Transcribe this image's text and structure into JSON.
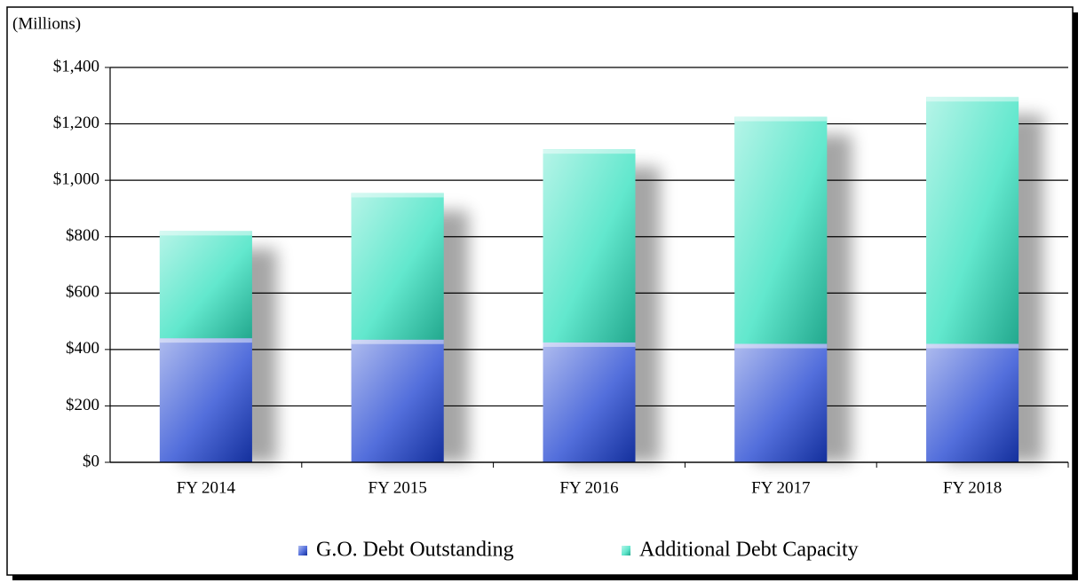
{
  "chart_data": {
    "type": "stacked_bar",
    "y_axis_label": "(Millions)",
    "categories": [
      "FY 2014",
      "FY 2015",
      "FY 2016",
      "FY 2017",
      "FY 2018"
    ],
    "series": [
      {
        "name": "G.O. Debt Outstanding",
        "color": "#1a3fd0",
        "values": [
          440,
          435,
          425,
          420,
          420
        ]
      },
      {
        "name": "Additional Debt Capacity",
        "color": "#2ee0bd",
        "values": [
          380,
          520,
          685,
          805,
          875
        ]
      }
    ],
    "ylim": [
      0,
      1400
    ],
    "yticks": [
      {
        "value": 0,
        "label": "$0"
      },
      {
        "value": 200,
        "label": "$200"
      },
      {
        "value": 400,
        "label": "$400"
      },
      {
        "value": 600,
        "label": "$600"
      },
      {
        "value": 800,
        "label": "$800"
      },
      {
        "value": 1000,
        "label": "$1,000"
      },
      {
        "value": 1200,
        "label": "$1,200"
      },
      {
        "value": 1400,
        "label": "$1,400"
      }
    ],
    "grid": true,
    "legend": "bottom"
  }
}
